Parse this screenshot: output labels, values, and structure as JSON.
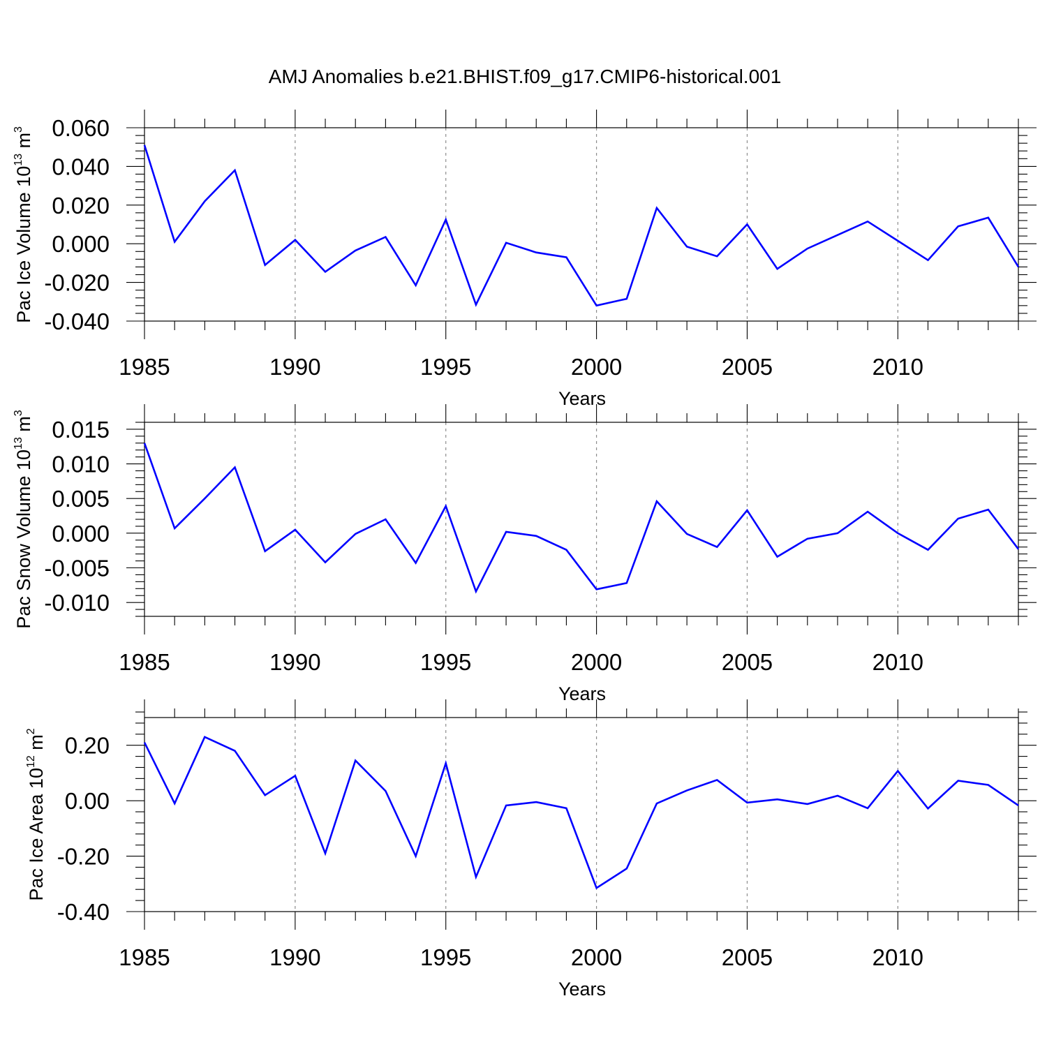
{
  "figure": {
    "title": "AMJ Anomalies b.e21.BHIST.f09_g17.CMIP6-historical.001"
  },
  "colors": {
    "line": "#0000ff",
    "axis": "#000000",
    "grid": "#8c8c8c"
  },
  "chart_data": [
    {
      "type": "line",
      "title": "AMJ Anomalies b.e21.BHIST.f09_g17.CMIP6-historical.001",
      "xlabel": "Years",
      "ylabel": "Pac Ice Volume 10",
      "ylabel_exp": "13",
      "ylabel_unit": " m",
      "ylabel_unit_exp": "3",
      "xlim": [
        1985,
        2014
      ],
      "ylim": [
        -0.04,
        0.06
      ],
      "xticks": [
        1985,
        1990,
        1995,
        2000,
        2005,
        2010
      ],
      "xtick_labels": [
        "1985",
        "1990",
        "1995",
        "2000",
        "2005",
        "2010"
      ],
      "yticks": [
        -0.04,
        -0.02,
        0.0,
        0.02,
        0.04,
        0.06
      ],
      "ytick_labels": [
        "-0.040",
        "-0.020",
        "0.000",
        "0.020",
        "0.040",
        "0.060"
      ],
      "grid": "vertical dashed at major x ticks",
      "x": [
        1985,
        1986,
        1987,
        1988,
        1989,
        1990,
        1991,
        1992,
        1993,
        1994,
        1995,
        1996,
        1997,
        1998,
        1999,
        2000,
        2001,
        2002,
        2003,
        2004,
        2005,
        2006,
        2007,
        2008,
        2009,
        2010,
        2011,
        2012,
        2013,
        2014
      ],
      "series": [
        {
          "name": "Pac Ice Volume",
          "values": [
            0.051,
            0.001,
            0.022,
            0.038,
            -0.011,
            0.002,
            -0.0145,
            -0.0035,
            0.0035,
            -0.0215,
            0.0125,
            -0.0315,
            0.0005,
            -0.0045,
            -0.007,
            -0.032,
            -0.0285,
            0.0185,
            -0.0015,
            -0.0065,
            0.01,
            -0.013,
            -0.0025,
            0.0045,
            0.0115,
            0.0015,
            -0.0085,
            0.009,
            0.0135,
            -0.012
          ]
        }
      ]
    },
    {
      "type": "line",
      "xlabel": "Years",
      "ylabel": "Pac Snow Volume 10",
      "ylabel_exp": "13",
      "ylabel_unit": " m",
      "ylabel_unit_exp": "3",
      "xlim": [
        1985,
        2014
      ],
      "ylim": [
        -0.012,
        0.016
      ],
      "xticks": [
        1985,
        1990,
        1995,
        2000,
        2005,
        2010
      ],
      "xtick_labels": [
        "1985",
        "1990",
        "1995",
        "2000",
        "2005",
        "2010"
      ],
      "yticks": [
        -0.01,
        -0.005,
        0.0,
        0.005,
        0.01,
        0.015
      ],
      "ytick_labels": [
        "-0.010",
        "-0.005",
        "0.000",
        "0.005",
        "0.010",
        "0.015"
      ],
      "grid": "vertical dashed at major x ticks",
      "x": [
        1985,
        1986,
        1987,
        1988,
        1989,
        1990,
        1991,
        1992,
        1993,
        1994,
        1995,
        1996,
        1997,
        1998,
        1999,
        2000,
        2001,
        2002,
        2003,
        2004,
        2005,
        2006,
        2007,
        2008,
        2009,
        2010,
        2011,
        2012,
        2013,
        2014
      ],
      "series": [
        {
          "name": "Pac Snow Volume",
          "values": [
            0.013,
            0.0007,
            0.005,
            0.0095,
            -0.0026,
            0.0005,
            -0.0042,
            -0.0001,
            0.002,
            -0.0043,
            0.0039,
            -0.0084,
            0.0002,
            -0.0004,
            -0.0024,
            -0.0081,
            -0.0072,
            0.0046,
            -0.0001,
            -0.002,
            0.0033,
            -0.0034,
            -0.0008,
            0.0,
            0.0031,
            0.0,
            -0.0024,
            0.0021,
            0.0034,
            -0.0023
          ]
        }
      ]
    },
    {
      "type": "line",
      "xlabel": "Years",
      "ylabel": "Pac Ice Area 10",
      "ylabel_exp": "12",
      "ylabel_unit": " m",
      "ylabel_unit_exp": "2",
      "xlim": [
        1985,
        2014
      ],
      "ylim": [
        -0.4,
        0.3
      ],
      "xticks": [
        1985,
        1990,
        1995,
        2000,
        2005,
        2010
      ],
      "xtick_labels": [
        "1985",
        "1990",
        "1995",
        "2000",
        "2005",
        "2010"
      ],
      "yticks": [
        -0.4,
        -0.2,
        0.0,
        0.2
      ],
      "ytick_labels": [
        "-0.40",
        "-0.20",
        "0.00",
        "0.20"
      ],
      "grid": "vertical dashed at major x ticks",
      "x": [
        1985,
        1986,
        1987,
        1988,
        1989,
        1990,
        1991,
        1992,
        1993,
        1994,
        1995,
        1996,
        1997,
        1998,
        1999,
        2000,
        2001,
        2002,
        2003,
        2004,
        2005,
        2006,
        2007,
        2008,
        2009,
        2010,
        2011,
        2012,
        2013,
        2014
      ],
      "series": [
        {
          "name": "Pac Ice Area",
          "values": [
            0.21,
            -0.01,
            0.23,
            0.18,
            0.02,
            0.09,
            -0.19,
            0.145,
            0.035,
            -0.2,
            0.135,
            -0.275,
            -0.017,
            -0.005,
            -0.027,
            -0.315,
            -0.245,
            -0.01,
            0.037,
            0.075,
            -0.007,
            0.005,
            -0.012,
            0.018,
            -0.027,
            0.107,
            -0.028,
            0.072,
            0.057,
            -0.017
          ]
        }
      ]
    }
  ]
}
